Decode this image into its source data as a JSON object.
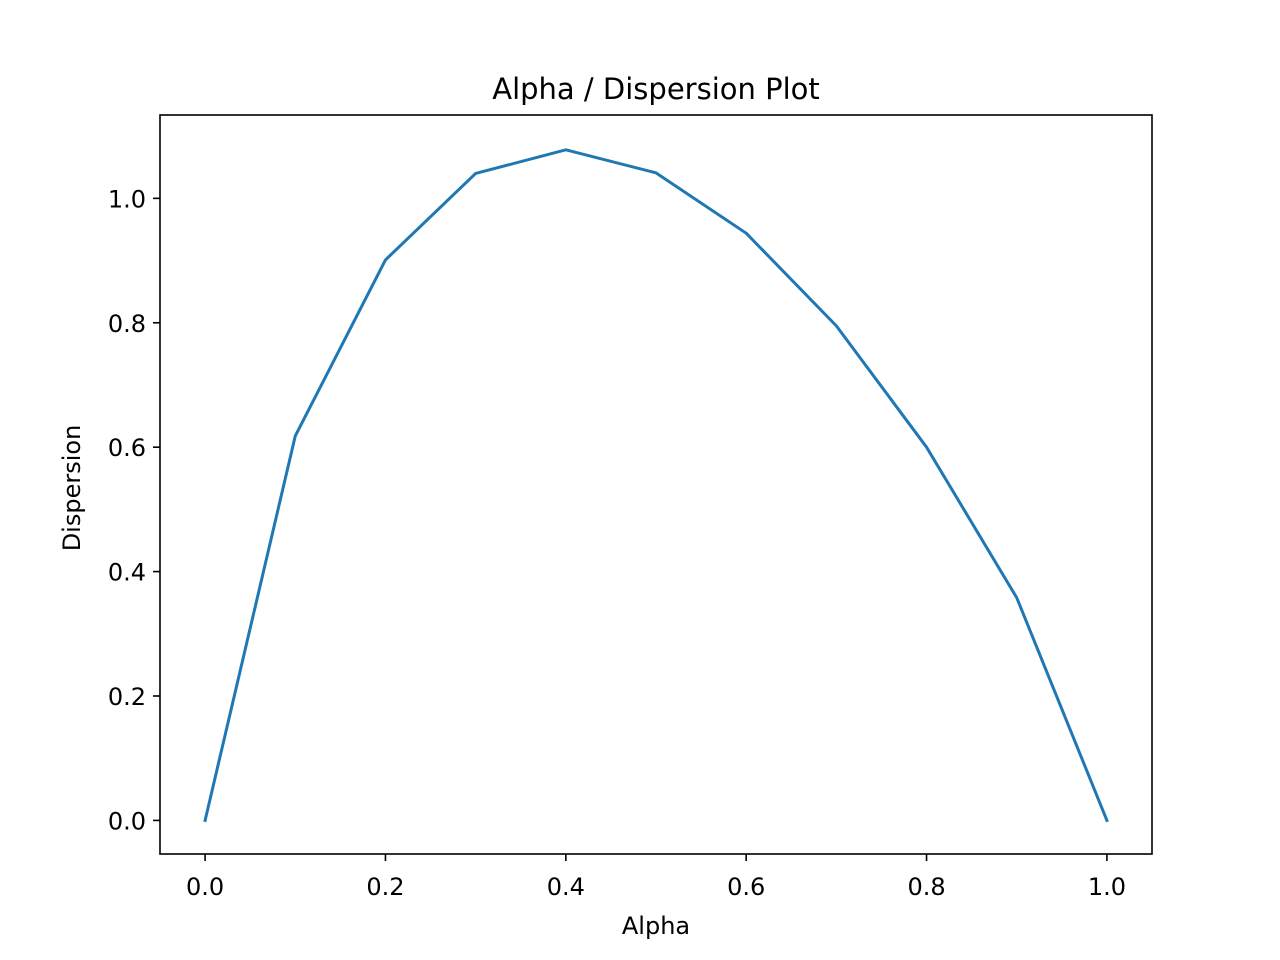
{
  "chart_data": {
    "type": "line",
    "title": "Alpha / Dispersion Plot",
    "xlabel": "Alpha",
    "ylabel": "Dispersion",
    "xlim": [
      -0.05,
      1.05
    ],
    "ylim": [
      -0.054,
      1.134
    ],
    "x_ticks": [
      "0.0",
      "0.2",
      "0.4",
      "0.6",
      "0.8",
      "1.0"
    ],
    "y_ticks": [
      "0.0",
      "0.2",
      "0.4",
      "0.6",
      "0.8",
      "1.0"
    ],
    "grid": false,
    "series": [
      {
        "color": "#1f77b4",
        "x": [
          0.0,
          0.1,
          0.2,
          0.3,
          0.4,
          0.5,
          0.6,
          0.7,
          0.8,
          0.9,
          1.0
        ],
        "y": [
          0.0,
          0.618,
          0.901,
          1.04,
          1.078,
          1.041,
          0.944,
          0.795,
          0.6,
          0.358,
          0.0
        ]
      }
    ]
  }
}
